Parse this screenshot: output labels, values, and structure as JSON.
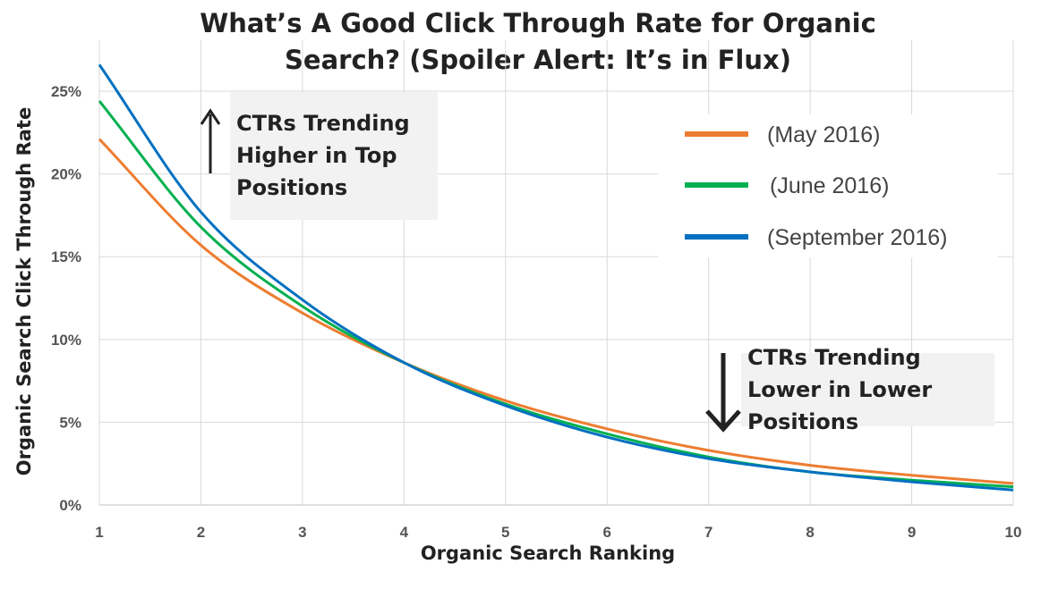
{
  "chart_data": {
    "type": "line",
    "title": [
      "What’s A Good Click Through Rate for Organic",
      "Search? (Spoiler Alert: It’s in Flux)"
    ],
    "xlabel": "Organic Search Ranking",
    "ylabel": "Organic Search Click Through Rate",
    "x": [
      1,
      2,
      3,
      4,
      5,
      6,
      7,
      8,
      9,
      10
    ],
    "xlim": [
      1,
      10
    ],
    "ylim": [
      0,
      27
    ],
    "yticks": [
      0,
      5,
      10,
      15,
      20,
      25
    ],
    "ytick_labels": [
      "0%",
      "5%",
      "10%",
      "15%",
      "20%",
      "25%"
    ],
    "xtick_labels": [
      "1",
      "2",
      "3",
      "4",
      "5",
      "6",
      "7",
      "8",
      "9",
      "10"
    ],
    "grid": true,
    "legend_position": "top-right",
    "series": [
      {
        "name": "(May 2016)",
        "color": "#ED7D31",
        "values": [
          22.1,
          15.7,
          11.6,
          8.6,
          6.3,
          4.6,
          3.3,
          2.4,
          1.8,
          1.3
        ]
      },
      {
        "name": "(June 2016)",
        "color": "#00B050",
        "values": [
          24.4,
          16.8,
          12.0,
          8.6,
          6.1,
          4.3,
          2.9,
          2.0,
          1.5,
          1.1
        ]
      },
      {
        "name": "(September 2016)",
        "color": "#0070C0",
        "values": [
          26.6,
          17.7,
          12.4,
          8.6,
          6.0,
          4.1,
          2.8,
          2.0,
          1.4,
          0.9
        ]
      }
    ],
    "annotations": [
      {
        "lines": [
          "CTRs Trending",
          "Higher in Top",
          "Positions"
        ],
        "arrow": "up"
      },
      {
        "lines": [
          "CTRs Trending",
          "Lower in Lower",
          "Positions"
        ],
        "arrow": "down"
      }
    ]
  }
}
